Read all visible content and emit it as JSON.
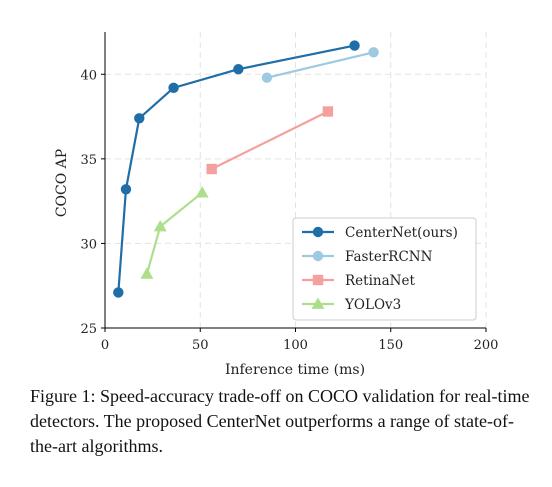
{
  "chart_data": {
    "type": "line",
    "xlabel": "Inference time (ms)",
    "ylabel": "COCO AP",
    "xlim": [
      0,
      200
    ],
    "ylim": [
      25,
      42.5
    ],
    "xticks": [
      0,
      50,
      100,
      150,
      200
    ],
    "yticks": [
      25,
      30,
      35,
      40
    ],
    "grid": true,
    "legend_position": "lower-right",
    "series": [
      {
        "name": "CenterNet(ours)",
        "color": "#1f6ea8",
        "marker": "circle",
        "points": [
          [
            7,
            27.1
          ],
          [
            11,
            33.2
          ],
          [
            18,
            37.4
          ],
          [
            36,
            39.2
          ],
          [
            70,
            40.3
          ],
          [
            131,
            41.7
          ]
        ]
      },
      {
        "name": "FasterRCNN",
        "color": "#9ecae1",
        "marker": "circle",
        "points": [
          [
            85,
            39.8
          ],
          [
            141,
            41.3
          ]
        ]
      },
      {
        "name": "RetinaNet",
        "color": "#f4a09c",
        "marker": "square",
        "points": [
          [
            56,
            34.4
          ],
          [
            117,
            37.8
          ]
        ]
      },
      {
        "name": "YOLOv3",
        "color": "#addf8a",
        "marker": "triangle",
        "points": [
          [
            22,
            28.2
          ],
          [
            29,
            31.0
          ],
          [
            51,
            33.0
          ]
        ]
      }
    ]
  },
  "caption": "Figure 1: Speed-accuracy trade-off on COCO validation for real-time detectors. The proposed CenterNet outperforms a range of state-of-the-art algorithms."
}
